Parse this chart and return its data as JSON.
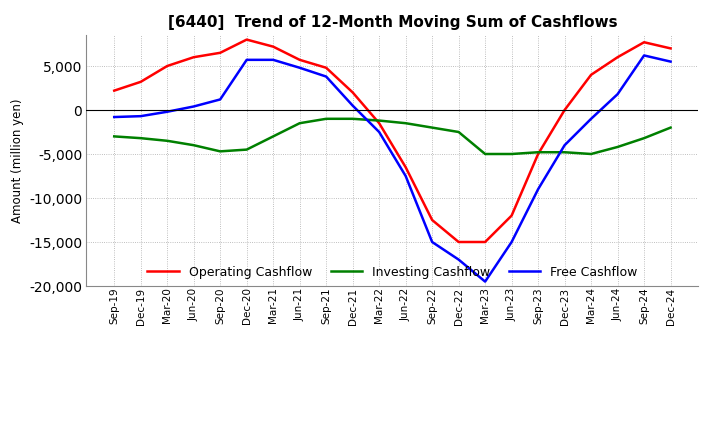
{
  "title": "[6440]  Trend of 12-Month Moving Sum of Cashflows",
  "ylabel": "Amount (million yen)",
  "ylim": [
    -20000,
    8500
  ],
  "yticks": [
    5000,
    0,
    -5000,
    -10000,
    -15000,
    -20000
  ],
  "background_color": "#ffffff",
  "grid_color": "#aaaaaa",
  "x_labels": [
    "Sep-19",
    "Dec-19",
    "Mar-20",
    "Jun-20",
    "Sep-20",
    "Dec-20",
    "Mar-21",
    "Jun-21",
    "Sep-21",
    "Dec-21",
    "Mar-22",
    "Jun-22",
    "Sep-22",
    "Dec-22",
    "Mar-23",
    "Jun-23",
    "Sep-23",
    "Dec-23",
    "Mar-24",
    "Jun-24",
    "Sep-24",
    "Dec-24"
  ],
  "operating_cashflow": [
    2200,
    3200,
    5000,
    6000,
    6500,
    8000,
    7200,
    5700,
    4800,
    2000,
    -1500,
    -6500,
    -12500,
    -15000,
    -15000,
    -12000,
    -5000,
    0,
    4000,
    6000,
    7700,
    7000
  ],
  "investing_cashflow": [
    -3000,
    -3200,
    -3500,
    -4000,
    -4700,
    -4500,
    -3000,
    -1500,
    -1000,
    -1000,
    -1200,
    -1500,
    -2000,
    -2500,
    -5000,
    -5000,
    -4800,
    -4800,
    -5000,
    -4200,
    -3200,
    -2000
  ],
  "free_cashflow": [
    -800,
    -700,
    -200,
    400,
    1200,
    5700,
    5700,
    4800,
    3800,
    500,
    -2500,
    -7500,
    -15000,
    -17000,
    -19500,
    -15000,
    -9000,
    -4000,
    -1000,
    1800,
    6200,
    5500
  ],
  "operating_color": "#ff0000",
  "investing_color": "#008000",
  "free_color": "#0000ff",
  "line_width": 1.8
}
